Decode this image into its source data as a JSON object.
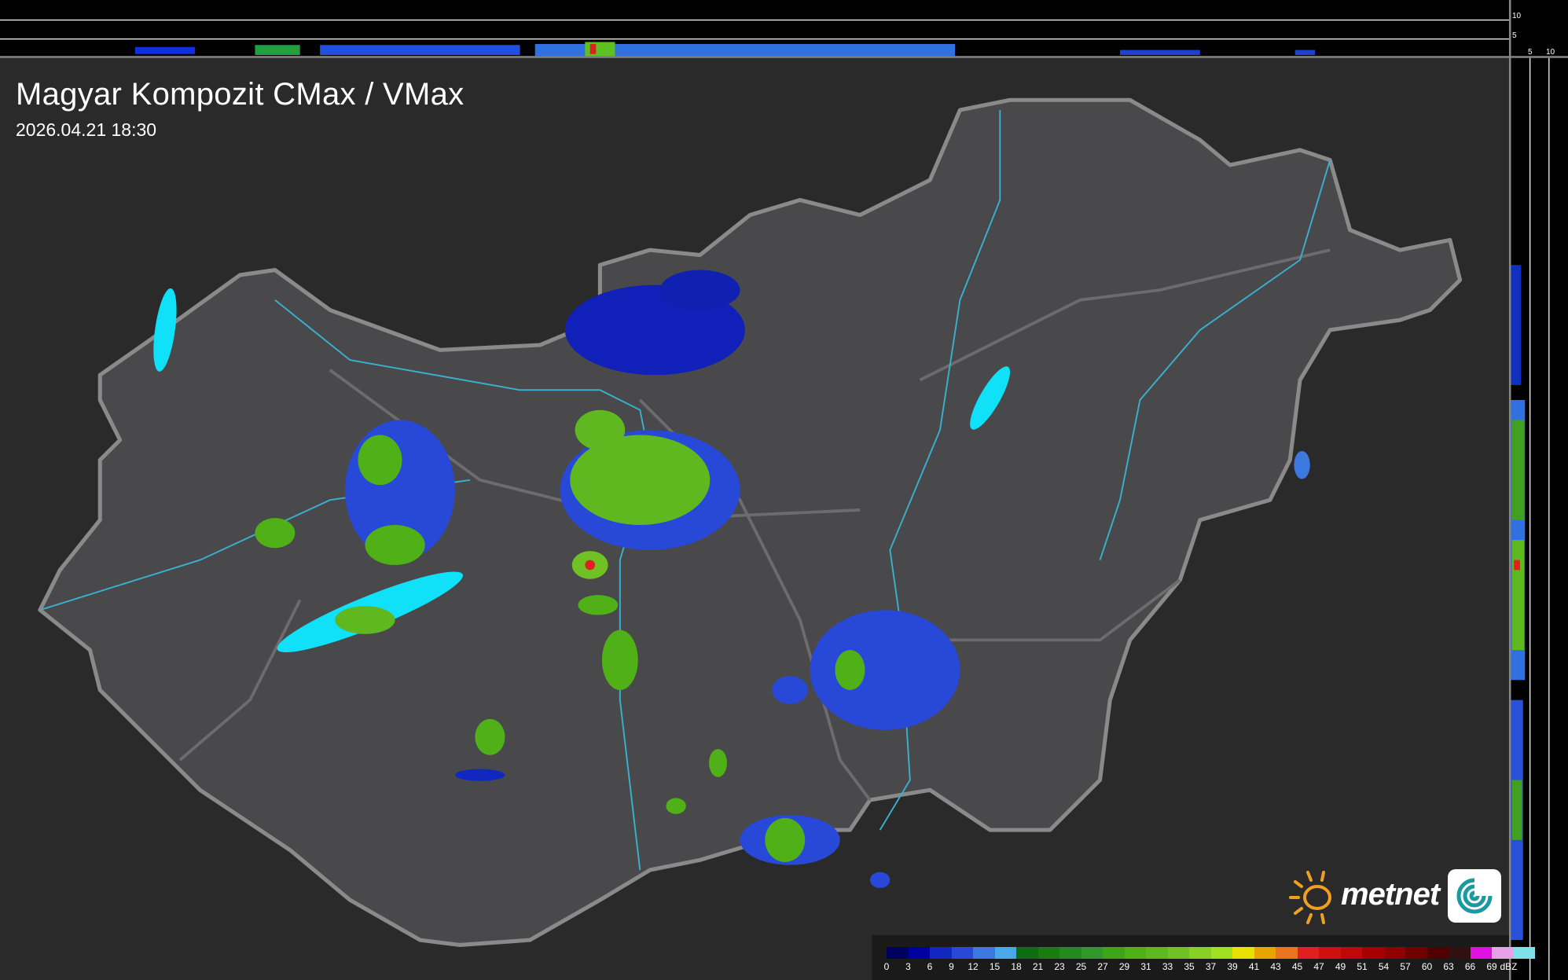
{
  "title": "Magyar Kompozit CMax / VMax",
  "timestamp": "2026.04.21 18:30",
  "logo": {
    "text": "metnet",
    "icon": "sun-icon"
  },
  "profile_axes": {
    "top_ticks": [
      "10",
      "5"
    ],
    "right_ticks": [
      "5",
      "10"
    ]
  },
  "legend": {
    "unit": "dBZ",
    "labels": [
      "0",
      "3",
      "6",
      "9",
      "12",
      "15",
      "18",
      "21",
      "23",
      "25",
      "27",
      "29",
      "31",
      "33",
      "35",
      "37",
      "39",
      "41",
      "43",
      "45",
      "47",
      "49",
      "51",
      "54",
      "57",
      "60",
      "63",
      "66",
      "69"
    ],
    "colors": [
      "#00005e",
      "#0000a0",
      "#1028c0",
      "#2848d8",
      "#3c78e0",
      "#48a8e8",
      "#106c10",
      "#1a7c10",
      "#228a1e",
      "#309828",
      "#40a418",
      "#50b018",
      "#60b820",
      "#70c224",
      "#88d024",
      "#a0e020",
      "#e8e000",
      "#e8a400",
      "#e87420",
      "#e02020",
      "#d01010",
      "#c00808",
      "#a80000",
      "#900000",
      "#700000",
      "#500000",
      "#301010",
      "#e010e0",
      "#e8a0e8",
      "#80e0e8"
    ]
  },
  "colors": {
    "background": "#262626",
    "country": "#4a4a4c",
    "border": "#8a8a8a",
    "rivers": "#3ab0d0",
    "lakes": "#10e0f8"
  }
}
